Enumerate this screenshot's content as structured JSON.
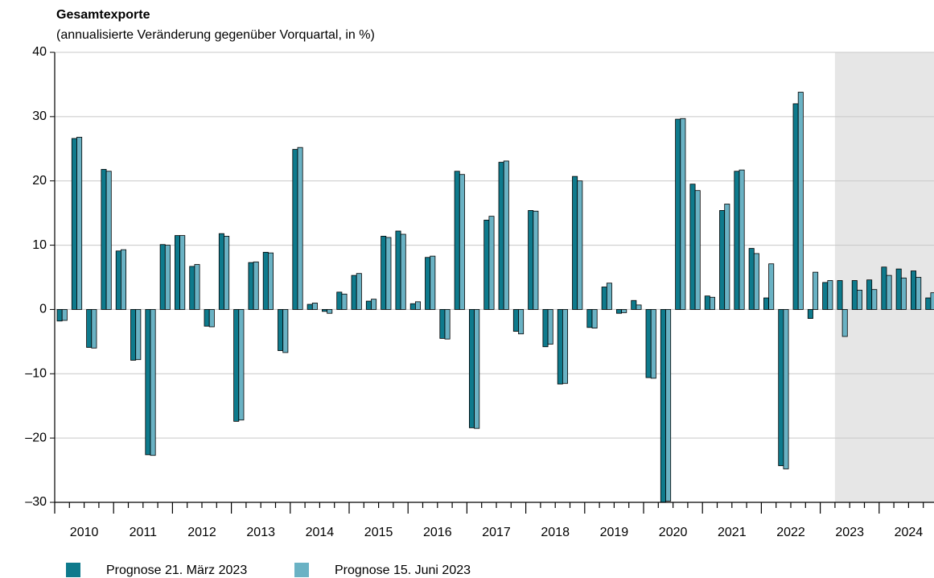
{
  "chart_data": {
    "type": "bar",
    "title": "Gesamtexporte",
    "subtitle": "(annualisierte Veränderung gegenüber Vorquartal, in %)",
    "categories": [
      null,
      null,
      null,
      null,
      null,
      null,
      null,
      null,
      null,
      null,
      null,
      null,
      null,
      null,
      null,
      null,
      null,
      null,
      null,
      null,
      null,
      null,
      null,
      null,
      null,
      null,
      null,
      null,
      null,
      null,
      null,
      null,
      null,
      null,
      null,
      null,
      null,
      null,
      null,
      null,
      null,
      null,
      null,
      null,
      null,
      null,
      null,
      null,
      null,
      null,
      null,
      null,
      null,
      null,
      null,
      null,
      null,
      null,
      null,
      null
    ],
    "x_group_labels": [
      "2010",
      "2011",
      "2012",
      "2013",
      "2014",
      "2015",
      "2016",
      "2017",
      "2018",
      "2019",
      "2020",
      "2021",
      "2022",
      "2023",
      "2024"
    ],
    "series": [
      {
        "name": "Prognose 21. März 2023",
        "color": "#0e7a8c",
        "values": [
          -1.8,
          26.6,
          -5.9,
          21.8,
          9.1,
          -7.9,
          -22.6,
          10.1,
          11.5,
          6.7,
          -2.6,
          11.8,
          -17.4,
          7.3,
          8.9,
          -6.4,
          24.9,
          0.8,
          -0.3,
          2.7,
          5.3,
          1.3,
          11.4,
          12.2,
          0.9,
          8.1,
          -4.5,
          21.5,
          -18.4,
          13.9,
          22.9,
          -3.4,
          15.4,
          -5.8,
          -11.6,
          20.7,
          -2.8,
          3.5,
          -0.6,
          1.4,
          -10.6,
          -30,
          29.6,
          19.5,
          2.1,
          15.4,
          21.5,
          9.5,
          1.8,
          -24.3,
          32.0,
          -1.4,
          4.2,
          4.5,
          4.5,
          4.6,
          6.6,
          6.3,
          6.0,
          1.8
        ]
      },
      {
        "name": "Prognose 15. Juni 2023",
        "color": "#6ab2c4",
        "values": [
          -1.7,
          26.8,
          -6.0,
          21.5,
          9.3,
          -7.8,
          -22.7,
          10.0,
          11.5,
          7.0,
          -2.7,
          11.4,
          -17.2,
          7.4,
          8.8,
          -6.7,
          25.2,
          1.0,
          -0.6,
          2.4,
          5.6,
          1.6,
          11.2,
          11.7,
          1.2,
          8.3,
          -4.6,
          21.0,
          -18.5,
          14.5,
          23.1,
          -3.8,
          15.3,
          -5.4,
          -11.5,
          20.0,
          -2.9,
          4.1,
          -0.5,
          0.7,
          -10.7,
          -29.8,
          29.7,
          18.5,
          1.9,
          16.4,
          21.7,
          8.7,
          7.1,
          -24.8,
          33.8,
          5.8,
          4.5,
          -4.2,
          3.0,
          3.1,
          5.3,
          4.9,
          5.0,
          2.6
        ]
      }
    ],
    "ylim": [
      -30,
      40
    ],
    "yticks": [
      {
        "value": -30,
        "label": "–30"
      },
      {
        "value": -20,
        "label": "–20"
      },
      {
        "value": -10,
        "label": "–10"
      },
      0,
      10,
      20,
      30,
      40
    ],
    "grid": true,
    "shaded_from_category": 53
  }
}
